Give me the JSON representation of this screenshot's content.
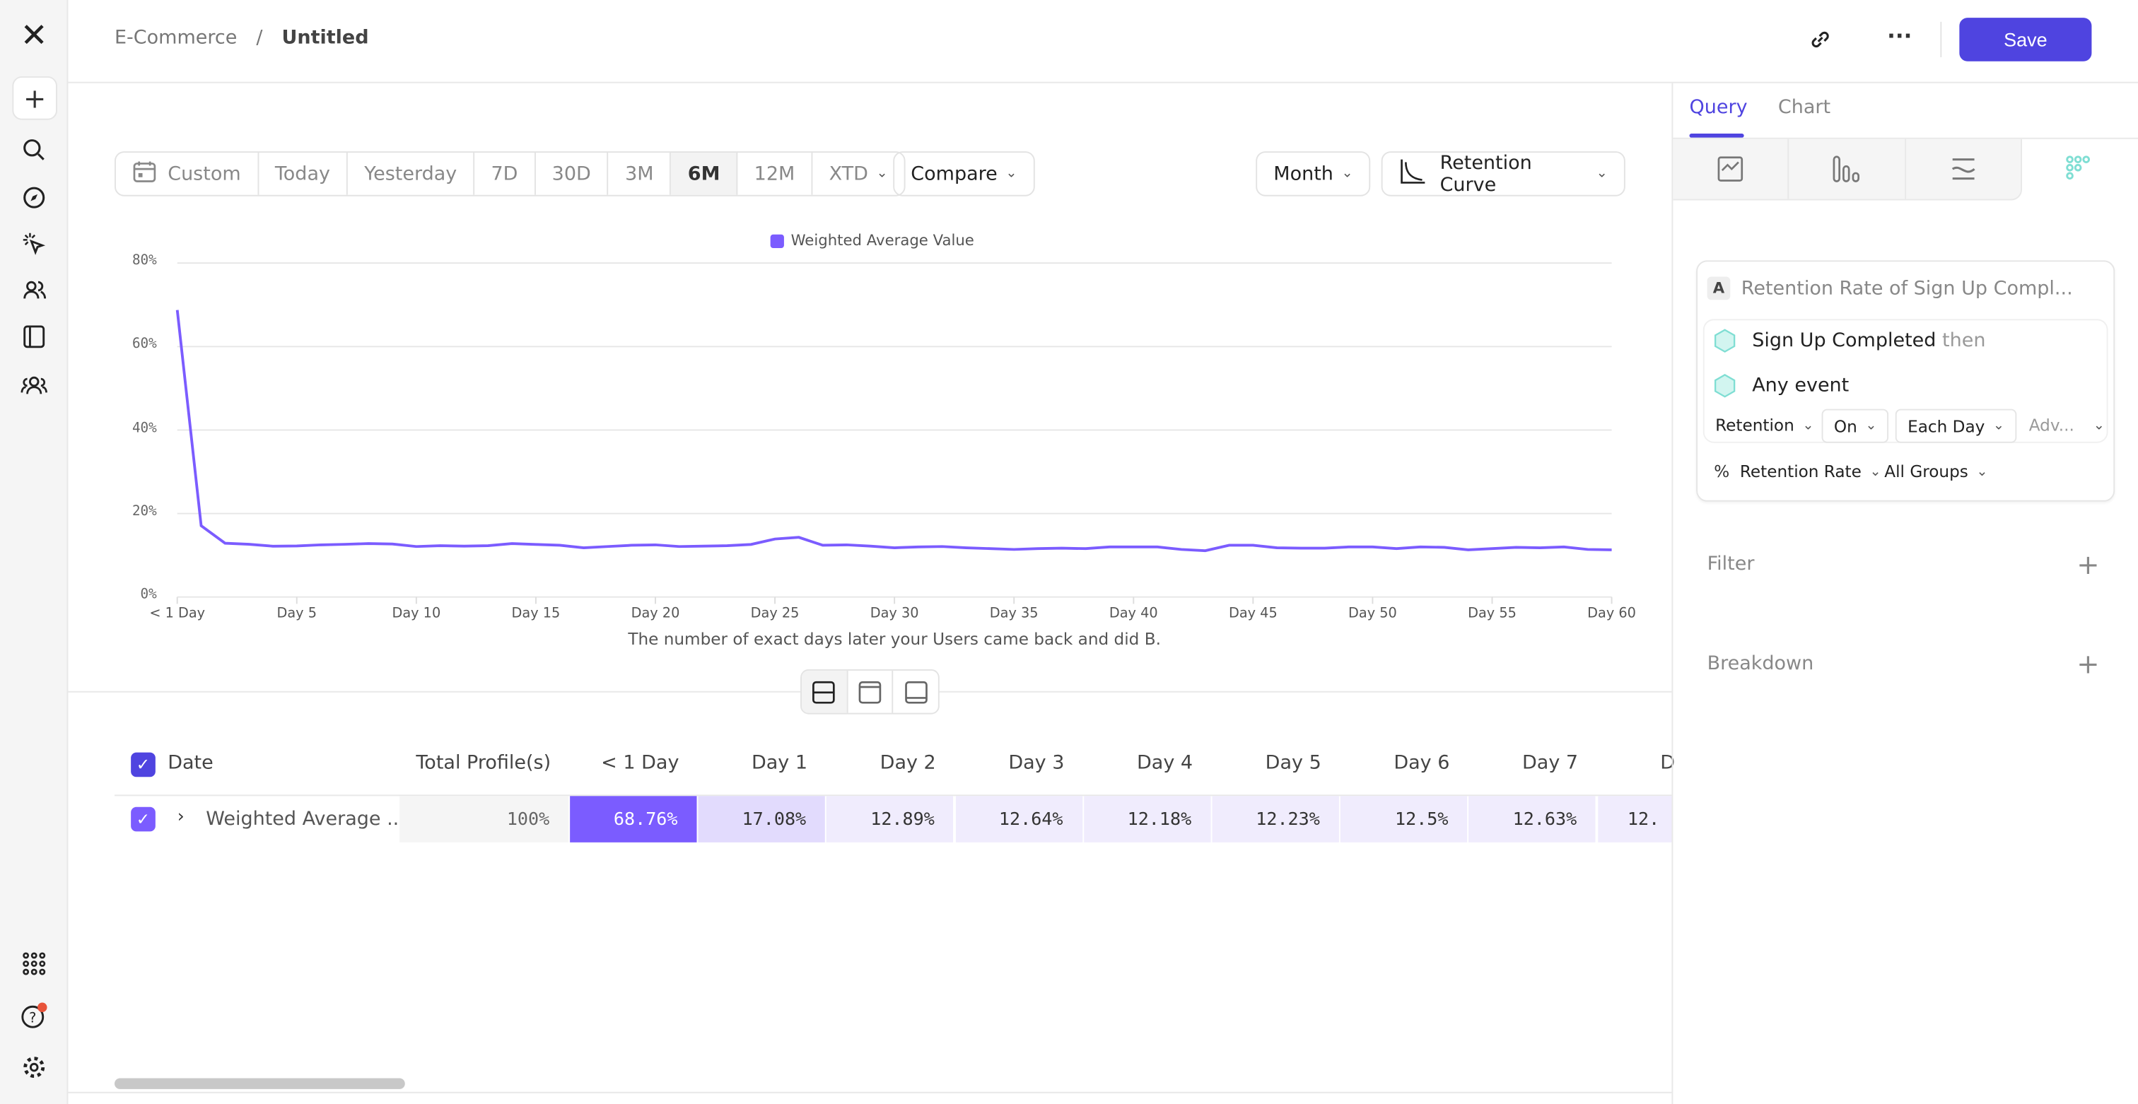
{
  "breadcrumb": {
    "parent": "E-Commerce",
    "separator": "/",
    "current": "Untitled"
  },
  "header": {
    "save_label": "Save"
  },
  "toolbar": {
    "date_ranges": [
      "Custom",
      "Today",
      "Yesterday",
      "7D",
      "30D",
      "3M",
      "6M",
      "12M",
      "XTD"
    ],
    "active_range": "6M",
    "compare": "Compare",
    "interval": "Month",
    "chart_type": "Retention Curve"
  },
  "colors": {
    "accent": "#4f44e0",
    "series": "#7b5cff",
    "event_icon": "#7fded3"
  },
  "chart_data": {
    "type": "line",
    "legend": "Weighted Average Value",
    "legend_position": "top",
    "xlabel": "The number of exact days later your Users came back and did B.",
    "ylabel": "",
    "ylim": [
      0,
      80
    ],
    "yticks": [
      "0%",
      "20%",
      "40%",
      "60%",
      "80%"
    ],
    "xticks": [
      "< 1 Day",
      "Day 5",
      "Day 10",
      "Day 15",
      "Day 20",
      "Day 25",
      "Day 30",
      "Day 35",
      "Day 40",
      "Day 45",
      "Day 50",
      "Day 55",
      "Day 60"
    ],
    "grid": true,
    "x": [
      0,
      1,
      2,
      3,
      4,
      5,
      6,
      7,
      8,
      9,
      10,
      11,
      12,
      13,
      14,
      15,
      16,
      17,
      18,
      19,
      20,
      21,
      22,
      23,
      24,
      25,
      26,
      27,
      28,
      29,
      30,
      31,
      32,
      33,
      34,
      35,
      36,
      37,
      38,
      39,
      40,
      41,
      42,
      43,
      44,
      45,
      46,
      47,
      48,
      49,
      50,
      51,
      52,
      53,
      54,
      55,
      56,
      57,
      58,
      59,
      60
    ],
    "values": [
      68.76,
      17.08,
      12.89,
      12.64,
      12.18,
      12.23,
      12.5,
      12.63,
      12.8,
      12.7,
      12.1,
      12.3,
      12.2,
      12.3,
      12.8,
      12.6,
      12.4,
      11.8,
      12.1,
      12.4,
      12.5,
      12.1,
      12.2,
      12.3,
      12.6,
      13.9,
      14.3,
      12.4,
      12.5,
      12.2,
      11.8,
      12.0,
      12.1,
      11.8,
      11.6,
      11.4,
      11.6,
      11.7,
      11.6,
      12.0,
      12.0,
      12.0,
      11.4,
      11.1,
      12.4,
      12.4,
      11.8,
      11.7,
      11.7,
      12.0,
      12.0,
      11.6,
      12.0,
      11.9,
      11.3,
      11.6,
      11.9,
      11.8,
      12.0,
      11.4,
      11.3
    ]
  },
  "table": {
    "headers": [
      "Date",
      "Total Profile(s)",
      "< 1 Day",
      "Day 1",
      "Day 2",
      "Day 3",
      "Day 4",
      "Day 5",
      "Day 6",
      "Day 7",
      "D"
    ],
    "row": {
      "label": "Weighted Average ...",
      "total": "100%",
      "cells": [
        "68.76%",
        "17.08%",
        "12.89%",
        "12.64%",
        "12.18%",
        "12.23%",
        "12.5%",
        "12.63%",
        "12."
      ]
    }
  },
  "panel": {
    "tabs": [
      "Query",
      "Chart"
    ],
    "active_tab": "Query",
    "metric_letter": "A",
    "metric_title": "Retention Rate of Sign Up Compl...",
    "event1": "Sign Up Completed",
    "then": "then",
    "event2": "Any event",
    "opt_retention": "Retention",
    "opt_on": "On",
    "opt_each": "Each Day",
    "opt_adv": "Adv...",
    "pct": "%",
    "opt_rate": "Retention Rate",
    "opt_groups": "All Groups",
    "filter": "Filter",
    "breakdown": "Breakdown"
  }
}
